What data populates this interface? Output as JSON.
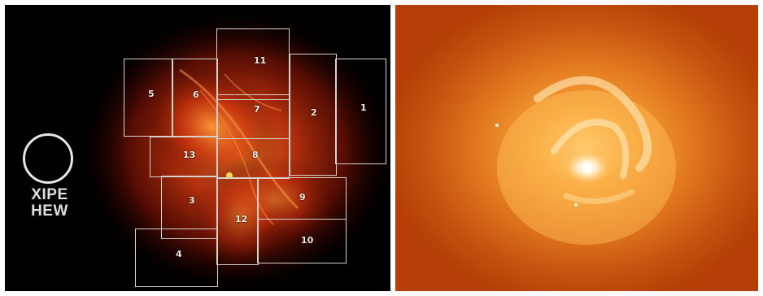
{
  "left_panel": {
    "hew_label_line1": "XIPE",
    "hew_label_line2": "HEW",
    "regions": [
      {
        "label": "1"
      },
      {
        "label": "2"
      },
      {
        "label": "3"
      },
      {
        "label": "4"
      },
      {
        "label": "5"
      },
      {
        "label": "6"
      },
      {
        "label": "7"
      },
      {
        "label": "8"
      },
      {
        "label": "9"
      },
      {
        "label": "10"
      },
      {
        "label": "11"
      },
      {
        "label": "12"
      },
      {
        "label": "13"
      }
    ],
    "colors": {
      "background": "#000000",
      "nebula": "#c83010",
      "box_outline": "#d8d2cc"
    }
  },
  "right_panel": {
    "colors": {
      "background": "#b53f06",
      "glow": "#f7a236",
      "core": "#fff6dc"
    }
  }
}
